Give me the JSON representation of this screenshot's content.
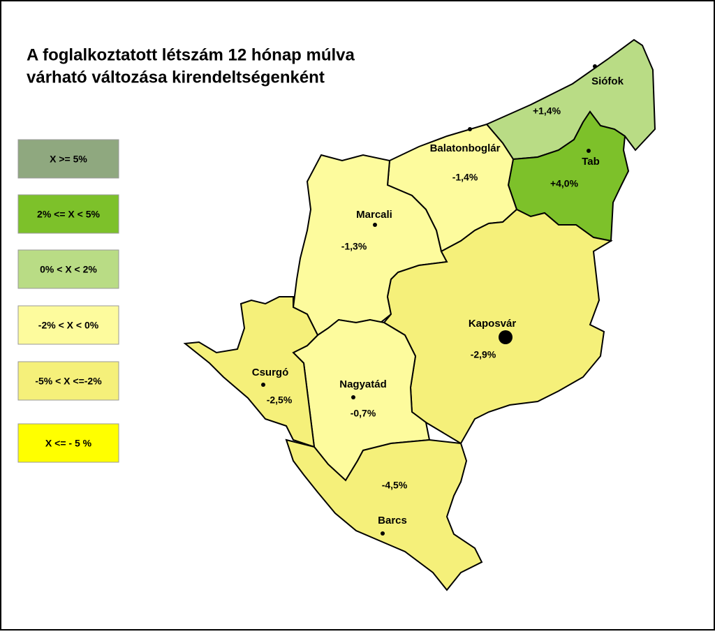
{
  "header": {
    "title": [
      "A foglalkoztatott létszám 12 hónap múlva",
      "várható változása kirendeltségenként"
    ]
  },
  "legend": [
    {
      "label": "X >= 5%",
      "color": "#8fa87f"
    },
    {
      "label": "2% <= X < 5%",
      "color": "#7dc12a"
    },
    {
      "label": "0% < X < 2%",
      "color": "#b9dc85"
    },
    {
      "label": "-2% < X <  0%",
      "color": "#fdfb9d"
    },
    {
      "label": "-5% < X <=-2%",
      "color": "#f5f07a"
    },
    {
      "label": "X <= - 5 %",
      "color": "#ffff00"
    }
  ],
  "regions": [
    {
      "name": "Siófok",
      "value": "+1,4%",
      "color": "#b9dc85"
    },
    {
      "name": "Tab",
      "value": "+4,0%",
      "color": "#7dc12a"
    },
    {
      "name": "Balatonboglár",
      "value": "-1,4%",
      "color": "#fdfb9d"
    },
    {
      "name": "Marcali",
      "value": "-1,3%",
      "color": "#fdfb9d"
    },
    {
      "name": "Kaposvár",
      "value": "-2,9%",
      "color": "#f5f07a"
    },
    {
      "name": "Nagyatád",
      "value": "-0,7%",
      "color": "#fdfb9d"
    },
    {
      "name": "Csurgó",
      "value": "-2,5%",
      "color": "#f5f07a"
    },
    {
      "name": "Barcs",
      "value": "-4,5%",
      "color": "#f5f07a"
    }
  ]
}
